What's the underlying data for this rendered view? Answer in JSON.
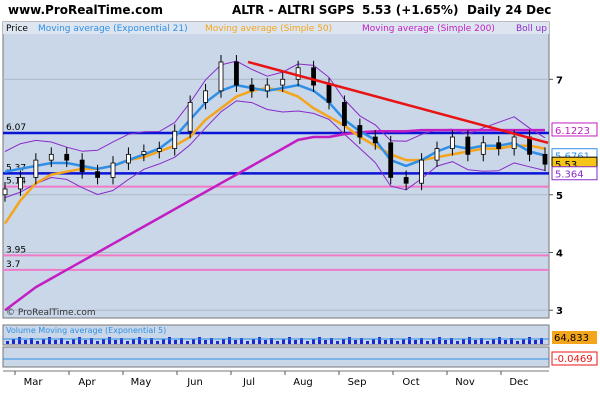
{
  "header": {
    "site": "www.ProRealTime.com",
    "instrument": "ALTR - ALTRI SGPS",
    "quote": "5.53 (+1.65%)",
    "period": "Daily 24 Dec"
  },
  "legend": {
    "price": "Price",
    "ema21": "Moving average (Exponential 21)",
    "sma50": "Moving average (Simple 50)",
    "sma200": "Moving average (Simple 200)",
    "bollinger": "Boll up"
  },
  "watermark": "© ProRealTime.com",
  "volume_panel": {
    "label": "Volume Moving average (Exponential 5)",
    "value_tag": "64,833"
  },
  "indicator_panel": {
    "value_tag": "-0.0469"
  },
  "price_tags": {
    "upper_band": "6.1223",
    "ema": "5.6761",
    "last": "5.53",
    "lower": "5.364"
  },
  "colors": {
    "background": "#c9d7e8",
    "candles": "#000000",
    "ema21": "#2f8fe6",
    "sma50": "#f5a51c",
    "sma200": "#c21ec2",
    "bollinger": "#8a2ac9",
    "resistance_line": "#e81414",
    "horizontal_blue": "#0a14d6",
    "horizontal_pink": "#f07ac8"
  },
  "chart_data": {
    "type": "candlestick",
    "x_labels": [
      "Mar",
      "Apr",
      "May",
      "Jun",
      "Jul",
      "Aug",
      "Sep",
      "Oct",
      "Nov",
      "Dec"
    ],
    "y_ticks": [
      3,
      4,
      5,
      7
    ],
    "ylim": [
      2.9,
      7.75
    ],
    "horizontal_levels": [
      {
        "value": 6.07,
        "label": "6.07",
        "color": "blue"
      },
      {
        "value": 5.37,
        "label": "5.37",
        "color": "blue"
      },
      {
        "value": 5.14,
        "label": "5.14",
        "color": "pink"
      },
      {
        "value": 3.95,
        "label": "3.95",
        "color": "pink"
      },
      {
        "value": 3.7,
        "label": "3.7",
        "color": "pink"
      }
    ],
    "resistance_line": {
      "from": [
        "Jul",
        7.3
      ],
      "to": [
        "Dec",
        5.9
      ]
    },
    "close": [
      5.1,
      5.3,
      5.6,
      5.7,
      5.6,
      5.4,
      5.3,
      5.55,
      5.7,
      5.75,
      5.8,
      6.1,
      6.6,
      6.8,
      7.3,
      6.9,
      6.8,
      6.9,
      7.0,
      7.2,
      6.9,
      6.6,
      6.2,
      6.0,
      5.9,
      5.3,
      5.2,
      5.6,
      5.8,
      6.0,
      5.7,
      5.9,
      5.8,
      6.0,
      5.7,
      5.53
    ],
    "ema21": [
      5.4,
      5.45,
      5.5,
      5.55,
      5.55,
      5.5,
      5.45,
      5.5,
      5.6,
      5.7,
      5.8,
      6.0,
      6.3,
      6.6,
      6.8,
      6.9,
      6.85,
      6.8,
      6.85,
      6.9,
      6.8,
      6.6,
      6.3,
      6.1,
      5.95,
      5.6,
      5.5,
      5.6,
      5.75,
      5.85,
      5.8,
      5.85,
      5.85,
      5.9,
      5.75,
      5.68
    ],
    "sma50": [
      4.5,
      4.9,
      5.2,
      5.35,
      5.4,
      5.45,
      5.45,
      5.5,
      5.6,
      5.65,
      5.75,
      5.85,
      6.0,
      6.3,
      6.5,
      6.7,
      6.8,
      6.85,
      6.8,
      6.7,
      6.5,
      6.35,
      6.2,
      6.0,
      5.85,
      5.7,
      5.6,
      5.6,
      5.65,
      5.7,
      5.75,
      5.8,
      5.8,
      5.85,
      5.85,
      5.8
    ],
    "sma200": [
      3.0,
      3.2,
      3.4,
      3.55,
      3.7,
      3.85,
      4.0,
      4.15,
      4.3,
      4.45,
      4.6,
      4.75,
      4.9,
      5.05,
      5.2,
      5.35,
      5.5,
      5.65,
      5.8,
      5.95,
      6.0,
      6.0,
      6.05,
      6.08,
      6.1,
      6.1,
      6.1,
      6.12,
      6.12,
      6.12,
      6.12,
      6.12,
      6.12,
      6.12,
      6.12,
      6.12
    ]
  }
}
